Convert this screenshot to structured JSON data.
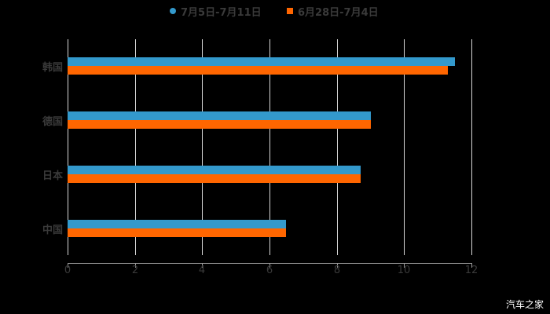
{
  "chart_data": {
    "type": "bar",
    "orientation": "horizontal",
    "title": "",
    "categories": [
      "韩国",
      "德国",
      "日本",
      "中国"
    ],
    "series": [
      {
        "name": "7月5日-7月11日",
        "color": "#3399cc",
        "values": [
          11.5,
          9.0,
          8.7,
          6.5
        ]
      },
      {
        "name": "6月28日-7月4日",
        "color": "#ff6600",
        "values": [
          11.3,
          9.0,
          8.7,
          6.5
        ]
      }
    ],
    "xlabel": "",
    "ylabel": "",
    "xlim": [
      0,
      12
    ],
    "x_ticks": [
      "0",
      "2",
      "4",
      "6",
      "8",
      "10",
      "12"
    ],
    "grid": "vertical",
    "legend_position": "top"
  },
  "legend": {
    "items": [
      {
        "label": "7月5日-7月11日",
        "color": "#3399cc",
        "marker": "circle"
      },
      {
        "label": "6月28日-7月4日",
        "color": "#ff6600",
        "marker": "square"
      }
    ]
  },
  "watermark": "汽车之家"
}
